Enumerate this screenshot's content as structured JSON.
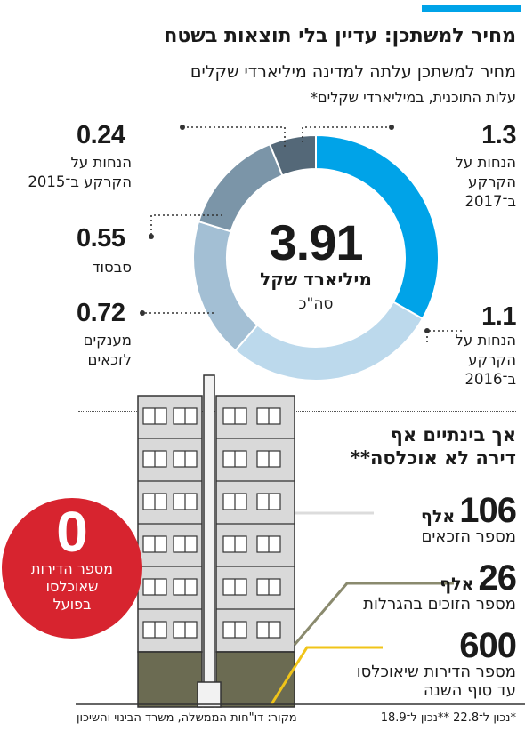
{
  "header": {
    "title": "מחיר למשתכן: עדיין בלי תוצאות בשטח",
    "subtitle": "מחיר למשתכן עלתה למדינה מיליארדי שקלים",
    "note": "עלות התוכנית, במיליארדי שקלים*"
  },
  "donut": {
    "total": "3.91",
    "unit": "מיליארד שקל",
    "sum_label": "סה\"כ"
  },
  "chart_data": {
    "type": "pie",
    "title": "מחיר למשתכן עלתה למדינה מיליארדי שקלים",
    "unit": "מיליארדי שקלים",
    "total": 3.91,
    "slices": [
      {
        "value": 1.3,
        "value_text": "1.3",
        "label": [
          "הנחות על",
          "הקרקע",
          "ב־2017"
        ],
        "color": "#00a3e8"
      },
      {
        "value": 1.1,
        "value_text": "1.1",
        "label": [
          "הנחות על",
          "הקרקע",
          "ב־2016"
        ],
        "color": "#bcd9ec"
      },
      {
        "value": 0.72,
        "value_text": "0.72",
        "label": [
          "מענקים",
          "לזכאים"
        ],
        "color": "#a3bfd4"
      },
      {
        "value": 0.55,
        "value_text": "0.55",
        "label": [
          "סבסוד"
        ],
        "color": "#7b95a8"
      },
      {
        "value": 0.24,
        "value_text": "0.24",
        "label": [
          "הנחות על",
          "הקרקע ב־2015"
        ],
        "color": "#546878"
      }
    ]
  },
  "apartments": {
    "heading_line1": "אך בינתיים אף",
    "heading_line2": "דירה לא אוכלסה**",
    "stats": [
      {
        "number": "106",
        "unit": "אלף",
        "label": "מספר הזכאים"
      },
      {
        "number": "26",
        "unit": "אלף",
        "label": "מספר הזוכים בהגרלות"
      },
      {
        "number": "600",
        "unit": "",
        "label": "מספר הדירות שיאוכלסו",
        "label2": "עד סוף השנה"
      }
    ],
    "badge": {
      "number": "0",
      "line1": "מספר הדירות",
      "line2": "שאוכלסו",
      "line3": "בפועל"
    }
  },
  "colors": {
    "accent": "#00a3e8",
    "badge_red": "#d7242f",
    "yellow_line": "#f0c419",
    "olive_line": "#8a8a6e",
    "building_light": "#d9d9d9",
    "building_dark": "#6b6b52"
  },
  "footer": {
    "source": "מקור: דו\"חות הממשלה, משרד הבינוי והשיכון",
    "footnote": "*נכון ל־22.8 **נכון ל־18.9"
  }
}
